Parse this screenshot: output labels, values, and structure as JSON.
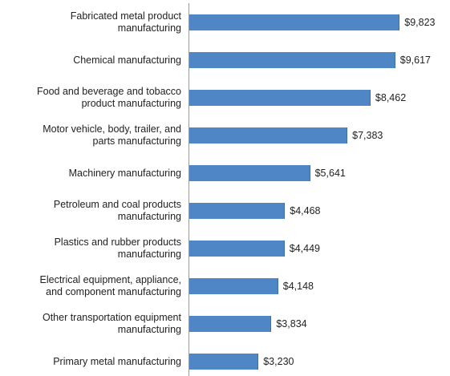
{
  "chart_data": {
    "type": "bar",
    "orientation": "horizontal",
    "categories": [
      "Fabricated metal product\nmanufacturing",
      "Chemical manufacturing",
      "Food and beverage and tobacco\nproduct manufacturing",
      "Motor vehicle, body, trailer, and\nparts manufacturing",
      "Machinery manufacturing",
      "Petroleum and coal products\nmanufacturing",
      "Plastics and rubber products\nmanufacturing",
      "Electrical equipment, appliance,\nand component manufacturing",
      "Other transportation equipment\nmanufacturing",
      "Primary metal manufacturing"
    ],
    "values": [
      9823,
      9617,
      8462,
      7383,
      5641,
      4468,
      4449,
      4148,
      3834,
      3230
    ],
    "value_labels": [
      "$9,823",
      "$9,617",
      "$8,462",
      "$7,383",
      "$5,641",
      "$4,468",
      "$4,449",
      "$4,148",
      "$3,834",
      "$3,230"
    ],
    "color": "#4f86c6"
  }
}
